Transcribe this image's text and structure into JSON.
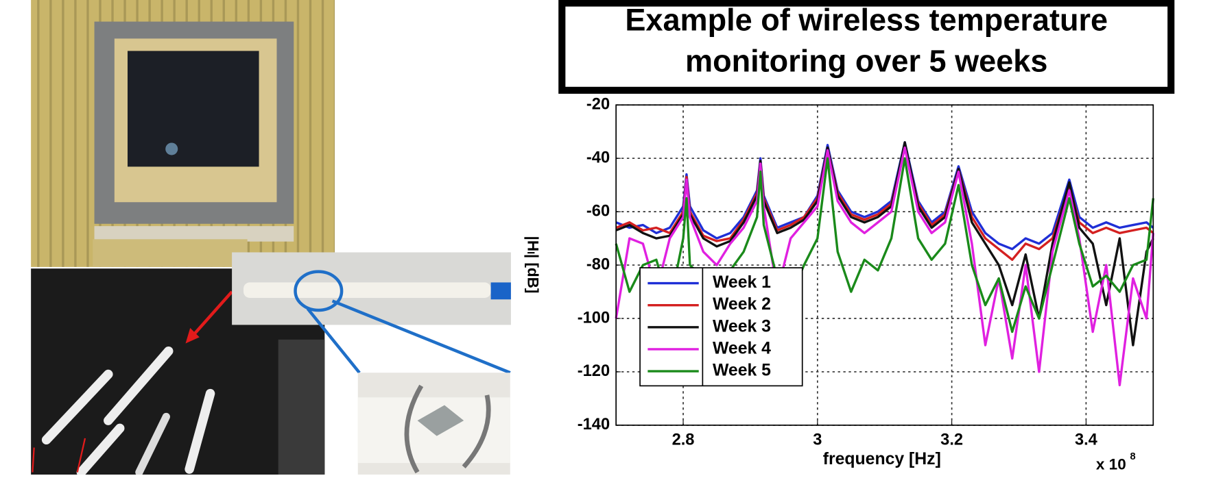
{
  "chart_data": {
    "type": "line",
    "title": [
      "Example of wireless temperature",
      "monitoring over 5 weeks"
    ],
    "xlabel": "frequency [Hz]",
    "ylabel": "|Hₗ| [dB]",
    "x_multiplier": {
      "base": "x 10",
      "exponent": "8"
    },
    "x": [
      2.7,
      2.72,
      2.74,
      2.76,
      2.78,
      2.8,
      2.805,
      2.81,
      2.83,
      2.85,
      2.87,
      2.89,
      2.91,
      2.915,
      2.92,
      2.94,
      2.96,
      2.98,
      3.0,
      3.015,
      3.03,
      3.05,
      3.07,
      3.09,
      3.11,
      3.13,
      3.15,
      3.17,
      3.19,
      3.21,
      3.23,
      3.25,
      3.27,
      3.29,
      3.31,
      3.33,
      3.35,
      3.375,
      3.39,
      3.41,
      3.43,
      3.45,
      3.47,
      3.49,
      3.5
    ],
    "series": [
      {
        "name": "Week 1",
        "color": "#1f2fd6",
        "values": [
          -64,
          -66,
          -65,
          -68,
          -66,
          -58,
          -46,
          -58,
          -67,
          -70,
          -68,
          -62,
          -52,
          -40,
          -54,
          -66,
          -64,
          -62,
          -54,
          -35,
          -52,
          -60,
          -62,
          -60,
          -56,
          -34,
          -56,
          -64,
          -60,
          -43,
          -60,
          -68,
          -72,
          -74,
          -70,
          -72,
          -68,
          -48,
          -62,
          -66,
          -64,
          -66,
          -65,
          -64,
          -66
        ]
      },
      {
        "name": "Week 2",
        "color": "#d42020",
        "values": [
          -66,
          -64,
          -67,
          -66,
          -68,
          -60,
          -47,
          -60,
          -69,
          -71,
          -70,
          -63,
          -53,
          -41,
          -55,
          -67,
          -65,
          -62,
          -55,
          -36,
          -53,
          -61,
          -63,
          -61,
          -57,
          -35,
          -57,
          -65,
          -61,
          -44,
          -62,
          -70,
          -74,
          -78,
          -72,
          -74,
          -70,
          -50,
          -64,
          -68,
          -66,
          -68,
          -67,
          -66,
          -68
        ]
      },
      {
        "name": "Week 3",
        "color": "#111111",
        "values": [
          -67,
          -65,
          -68,
          -70,
          -69,
          -61,
          -48,
          -61,
          -70,
          -73,
          -71,
          -64,
          -54,
          -41,
          -56,
          -68,
          -66,
          -63,
          -56,
          -36,
          -54,
          -62,
          -64,
          -62,
          -58,
          -34,
          -58,
          -66,
          -62,
          -44,
          -64,
          -72,
          -80,
          -95,
          -76,
          -100,
          -72,
          -49,
          -66,
          -72,
          -95,
          -70,
          -110,
          -75,
          -70
        ]
      },
      {
        "name": "Week 4",
        "color": "#e020e0",
        "values": [
          -100,
          -70,
          -72,
          -90,
          -70,
          -62,
          -48,
          -62,
          -75,
          -80,
          -72,
          -66,
          -56,
          -42,
          -58,
          -90,
          -70,
          -64,
          -58,
          -37,
          -56,
          -64,
          -68,
          -64,
          -60,
          -36,
          -60,
          -68,
          -64,
          -45,
          -72,
          -110,
          -85,
          -115,
          -80,
          -120,
          -75,
          -52,
          -70,
          -105,
          -80,
          -125,
          -85,
          -100,
          -68
        ]
      },
      {
        "name": "Week 5",
        "color": "#1a8a1a",
        "values": [
          -72,
          -90,
          -80,
          -78,
          -95,
          -70,
          -55,
          -80,
          -85,
          -88,
          -82,
          -75,
          -62,
          -45,
          -65,
          -85,
          -92,
          -80,
          -70,
          -40,
          -75,
          -90,
          -78,
          -82,
          -70,
          -40,
          -70,
          -78,
          -72,
          -50,
          -80,
          -95,
          -85,
          -105,
          -88,
          -100,
          -80,
          -55,
          -72,
          -88,
          -84,
          -90,
          -80,
          -78,
          -55
        ]
      }
    ],
    "xlim": [
      2.7,
      3.5
    ],
    "xticks": [
      2.8,
      3,
      3.2,
      3.4
    ],
    "ylim": [
      -140,
      -20
    ],
    "yticks": [
      -20,
      -40,
      -60,
      -80,
      -100,
      -120,
      -140
    ],
    "grid": true,
    "legend": "lower-left"
  }
}
